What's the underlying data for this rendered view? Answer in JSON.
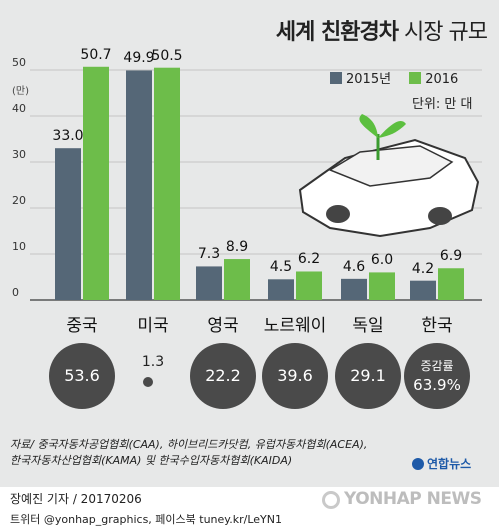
{
  "title": {
    "bold": "세계 친환경차",
    "light": "시장 규모"
  },
  "legend": [
    {
      "label": "2015년",
      "color": "#556777"
    },
    {
      "label": "2016",
      "color": "#6dbd4a"
    }
  ],
  "unit_label": "단위: 만 대",
  "y_unit": "(만)",
  "chart_data": {
    "type": "bar",
    "categories": [
      "중국",
      "미국",
      "영국",
      "노르웨이",
      "독일",
      "한국"
    ],
    "series": [
      {
        "name": "2015년",
        "values": [
          33.0,
          49.9,
          7.3,
          4.5,
          4.6,
          4.2
        ],
        "labels": [
          "33.0",
          "49.9",
          "7.3",
          "4.5",
          "4.6",
          "4.2"
        ]
      },
      {
        "name": "2016",
        "values": [
          50.7,
          50.5,
          8.9,
          6.2,
          6.0,
          6.9
        ],
        "labels": [
          "50.7",
          "50.5",
          "8.9",
          "6.2",
          "6.0",
          "6.9"
        ]
      }
    ],
    "ylim": [
      0,
      50
    ],
    "yticks": [
      "0",
      "10",
      "20",
      "30",
      "40",
      "50"
    ],
    "grid": true
  },
  "growth": {
    "label": "증감률",
    "values": [
      "53.6",
      "1.3",
      "22.2",
      "39.6",
      "29.1",
      "63.9%"
    ]
  },
  "source": [
    "자료/ 중국자동차공업협회(CAA), 하이브리드카닷컴, 유럽자동차협회(ACEA),",
    "한국자동차산업협회(KAMA) 및 한국수입자동차협회(KAIDA)"
  ],
  "credit": {
    "line1": "장예진 기자 / 20170206",
    "line2": "트위터 @yonhap_graphics, 페이스북 tuney.kr/LeYN1"
  },
  "logo_text": "연합뉴스",
  "watermark": "YONHAP NEWS",
  "colors": {
    "bar2015": "#556777",
    "bar2016": "#6dbd4a",
    "panel": "#e7e8e8",
    "circle": "#4a4a4a"
  }
}
